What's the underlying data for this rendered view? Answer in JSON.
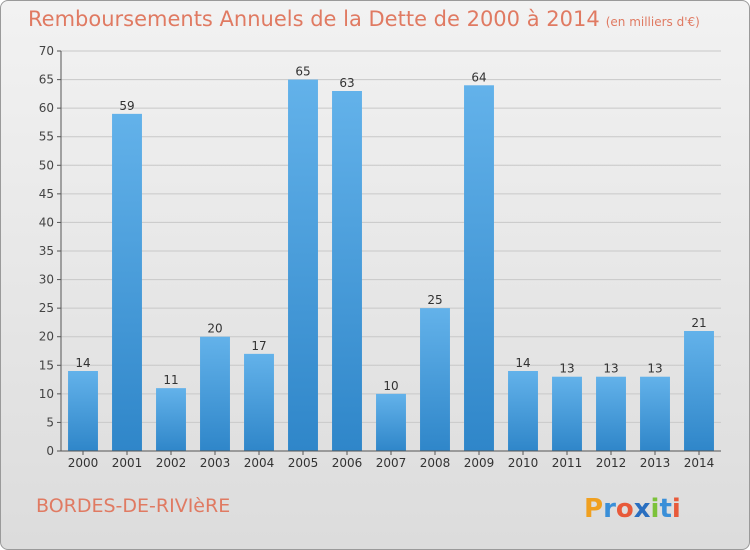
{
  "title": "Remboursements Annuels de la Dette de 2000 à 2014",
  "subtitle": "(en milliers d'€)",
  "commune": "BORDES-DE-RIVIèRE",
  "logo_text": "Proxiti",
  "colors": {
    "title": "#e07a62",
    "bar_light": "#63b2ea",
    "bar_dark": "#2f86c9",
    "grid": "#c8c8c8"
  },
  "chart_data": {
    "type": "bar",
    "title": "Remboursements Annuels de la Dette de 2000 à 2014",
    "subtitle": "(en milliers d'€)",
    "categories": [
      "2000",
      "2001",
      "2002",
      "2003",
      "2004",
      "2005",
      "2006",
      "2007",
      "2008",
      "2009",
      "2010",
      "2011",
      "2012",
      "2013",
      "2014"
    ],
    "values": [
      14,
      59,
      11,
      20,
      17,
      65,
      63,
      10,
      25,
      64,
      14,
      13,
      13,
      13,
      21
    ],
    "yticks": [
      0,
      5,
      10,
      15,
      20,
      25,
      30,
      35,
      40,
      45,
      50,
      55,
      60,
      65,
      70
    ],
    "ylim": [
      0,
      70
    ],
    "xlabel": "",
    "ylabel": "",
    "grid": true,
    "legend": "none"
  }
}
